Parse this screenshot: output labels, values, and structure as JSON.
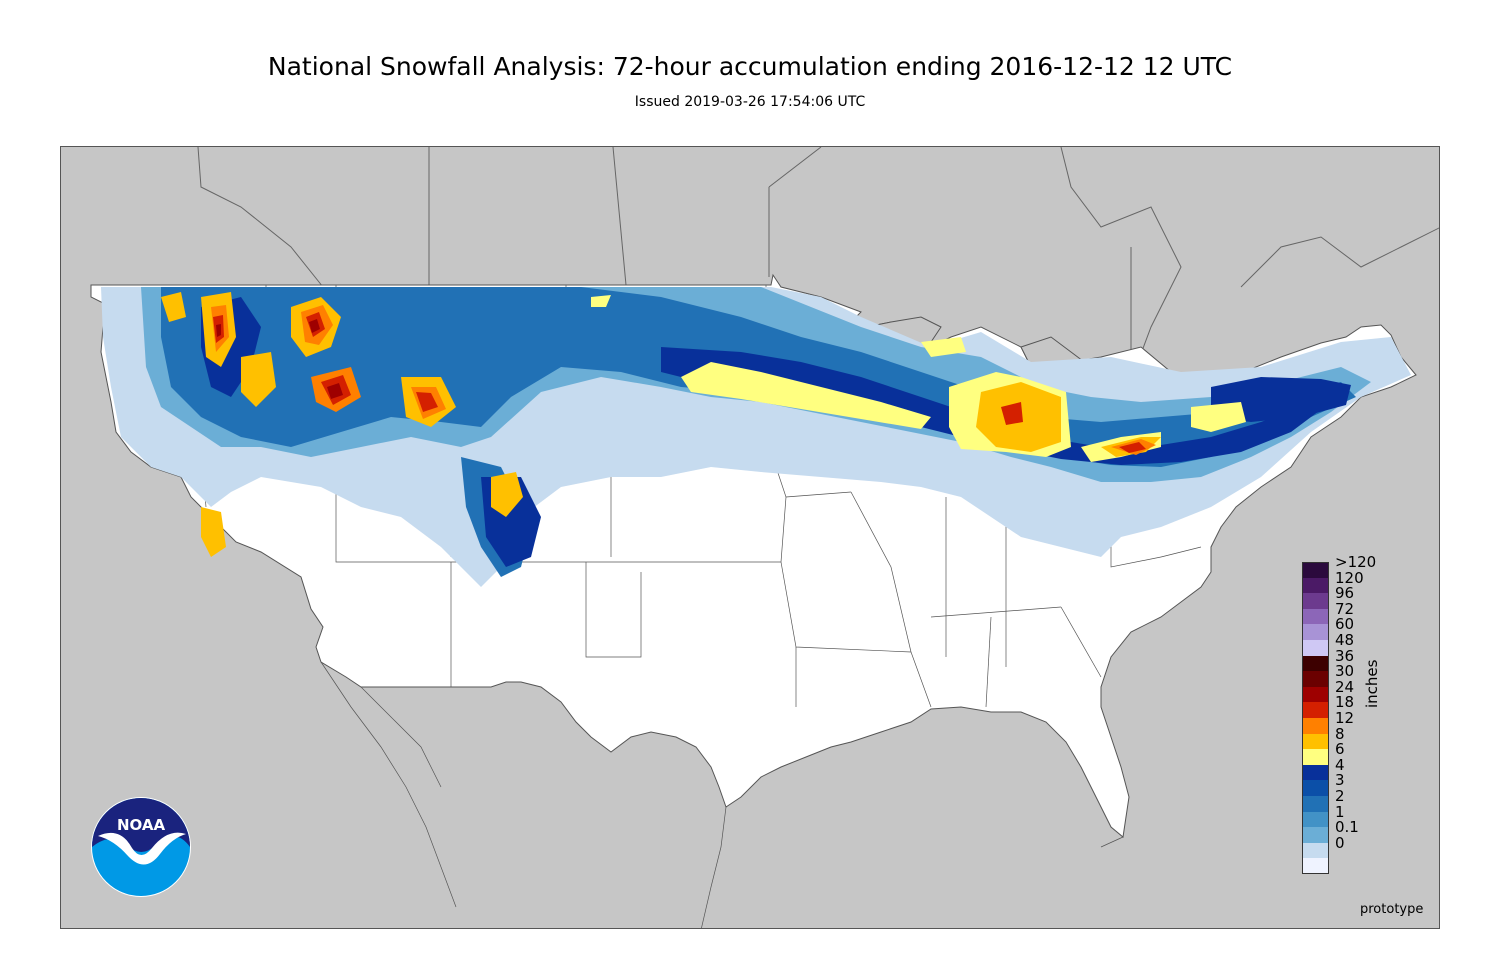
{
  "header": {
    "title": "National Snowfall Analysis: 72-hour accumulation ending 2016-12-12 12 UTC",
    "subtitle": "Issued 2019-03-26 17:54:06 UTC"
  },
  "legend": {
    "units": "inches",
    "bins": [
      {
        "label": ">120",
        "color": "#2b0a3d"
      },
      {
        "label": "120",
        "color": "#4b1a66"
      },
      {
        "label": "96",
        "color": "#6c3a8e"
      },
      {
        "label": "72",
        "color": "#8c66b8"
      },
      {
        "label": "60",
        "color": "#a893d6"
      },
      {
        "label": "48",
        "color": "#cfc8f4"
      },
      {
        "label": "36",
        "color": "#3d0000"
      },
      {
        "label": "30",
        "color": "#6b0000"
      },
      {
        "label": "24",
        "color": "#9e0000"
      },
      {
        "label": "18",
        "color": "#d42000"
      },
      {
        "label": "12",
        "color": "#ff8000"
      },
      {
        "label": "8",
        "color": "#ffc000"
      },
      {
        "label": "6",
        "color": "#ffff80"
      },
      {
        "label": "4",
        "color": "#08309a"
      },
      {
        "label": "3",
        "color": "#0b4fa8"
      },
      {
        "label": "2",
        "color": "#2171b5"
      },
      {
        "label": "1",
        "color": "#4292c6"
      },
      {
        "label": "0.1",
        "color": "#6baed6"
      },
      {
        "label": "0",
        "color": "#c6dbef"
      },
      {
        "label": "",
        "color": "#eff3ff"
      }
    ]
  },
  "footer": {
    "note": "prototype"
  },
  "logo": {
    "text": "NOAA"
  },
  "map_colors": {
    "land": "#c6c6c6",
    "us_no_snow": "#ffffff",
    "light_blue": "#c6dbef",
    "mid_blue": "#6baed6",
    "blue": "#2171b5",
    "dark_blue": "#08309a",
    "yellow": "#ffff80",
    "orange": "#ffc000",
    "dark_orange": "#ff8000",
    "red": "#d42000",
    "dark_red": "#9e0000"
  }
}
